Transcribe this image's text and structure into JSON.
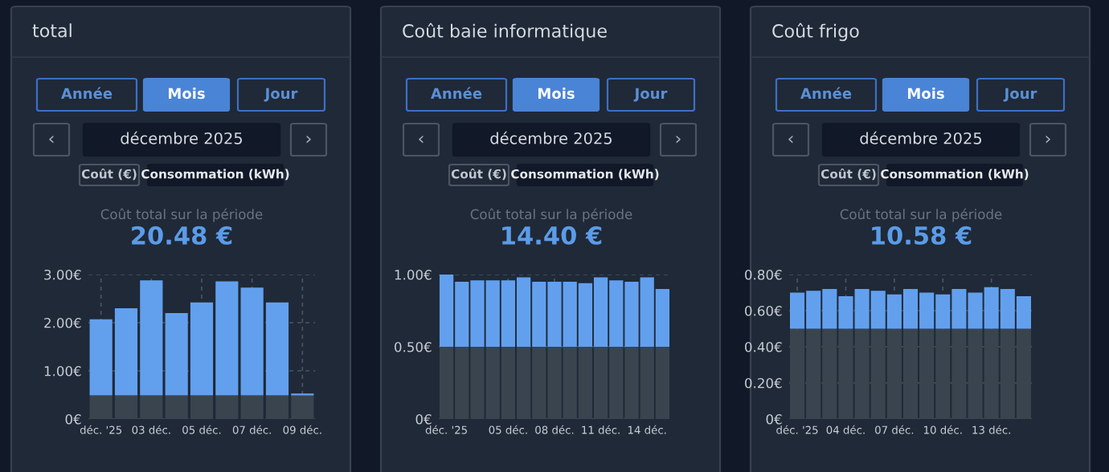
{
  "chart_data": [
    {
      "type": "bar",
      "title": "total",
      "stacked": true,
      "grid": true,
      "legend": false,
      "annotations": [
        "Année",
        "Mois",
        "Jour",
        "‹",
        "décembre 2025",
        "›",
        "Coût (€)",
        "Consommation (kWh)",
        "Coût total sur la période",
        "20.48 €"
      ],
      "categories": [
        "déc. '25",
        null,
        "03 déc.",
        null,
        "05 déc.",
        null,
        "07 déc.",
        null,
        "09 déc."
      ],
      "series": [
        {
          "color": "#3a444f",
          "values": [
            0.49,
            0.49,
            0.49,
            0.49,
            0.49,
            0.49,
            0.49,
            0.49,
            0.49
          ]
        },
        {
          "color": "#62a0ee",
          "values": [
            1.58,
            1.81,
            2.39,
            1.71,
            1.93,
            2.37,
            2.24,
            1.93,
            0.04
          ]
        }
      ],
      "ylim": [
        0,
        3
      ],
      "yticks": [
        {
          "value": 0,
          "label": "0€"
        },
        {
          "value": 1,
          "label": "1.00€"
        },
        {
          "value": 2,
          "label": "2.00€"
        },
        {
          "value": 3,
          "label": "3.00€"
        }
      ]
    },
    {
      "type": "bar",
      "title": "Coût baie informatique",
      "stacked": true,
      "grid": true,
      "legend": false,
      "annotations": [
        "Année",
        "Mois",
        "Jour",
        "‹",
        "décembre 2025",
        "›",
        "Coût (€)",
        "Consommation (kWh)",
        "Coût total sur la période",
        "14.40 €"
      ],
      "categories": [
        "déc. '25",
        null,
        null,
        null,
        "05 déc.",
        null,
        null,
        "08 déc.",
        null,
        null,
        "11 déc.",
        null,
        null,
        "14 déc.",
        null
      ],
      "series": [
        {
          "color": "#3a444f",
          "values": [
            0.5,
            0.5,
            0.5,
            0.5,
            0.5,
            0.5,
            0.5,
            0.5,
            0.5,
            0.5,
            0.5,
            0.5,
            0.5,
            0.5,
            0.5
          ]
        },
        {
          "color": "#62a0ee",
          "values": [
            0.5,
            0.45,
            0.46,
            0.46,
            0.46,
            0.48,
            0.45,
            0.45,
            0.45,
            0.44,
            0.48,
            0.46,
            0.45,
            0.48,
            0.4
          ]
        }
      ],
      "ylim": [
        0,
        1
      ],
      "yticks": [
        {
          "value": 0,
          "label": "0€"
        },
        {
          "value": 0.5,
          "label": "0.50€"
        },
        {
          "value": 1,
          "label": "1.00€"
        }
      ]
    },
    {
      "type": "bar",
      "title": "Coût frigo",
      "stacked": true,
      "grid": true,
      "legend": false,
      "annotations": [
        "Année",
        "Mois",
        "Jour",
        "‹",
        "décembre 2025",
        "›",
        "Coût (€)",
        "Consommation (kWh)",
        "Coût total sur la période",
        "10.58 €"
      ],
      "categories": [
        "déc. '25",
        null,
        null,
        "04 déc.",
        null,
        null,
        "07 déc.",
        null,
        null,
        "10 déc.",
        null,
        null,
        "13 déc.",
        null,
        null
      ],
      "series": [
        {
          "color": "#3a444f",
          "values": [
            0.5,
            0.5,
            0.5,
            0.5,
            0.5,
            0.5,
            0.5,
            0.5,
            0.5,
            0.5,
            0.5,
            0.5,
            0.5,
            0.5,
            0.5
          ]
        },
        {
          "color": "#62a0ee",
          "values": [
            0.2,
            0.21,
            0.22,
            0.18,
            0.22,
            0.21,
            0.19,
            0.22,
            0.2,
            0.19,
            0.22,
            0.2,
            0.23,
            0.22,
            0.18
          ]
        }
      ],
      "ylim": [
        0,
        0.8
      ],
      "yticks": [
        {
          "value": 0,
          "label": "0€"
        },
        {
          "value": 0.2,
          "label": "0.20€"
        },
        {
          "value": 0.4,
          "label": "0.40€"
        },
        {
          "value": 0.6,
          "label": "0.60€"
        },
        {
          "value": 0.8,
          "label": "0.80€"
        }
      ]
    }
  ]
}
